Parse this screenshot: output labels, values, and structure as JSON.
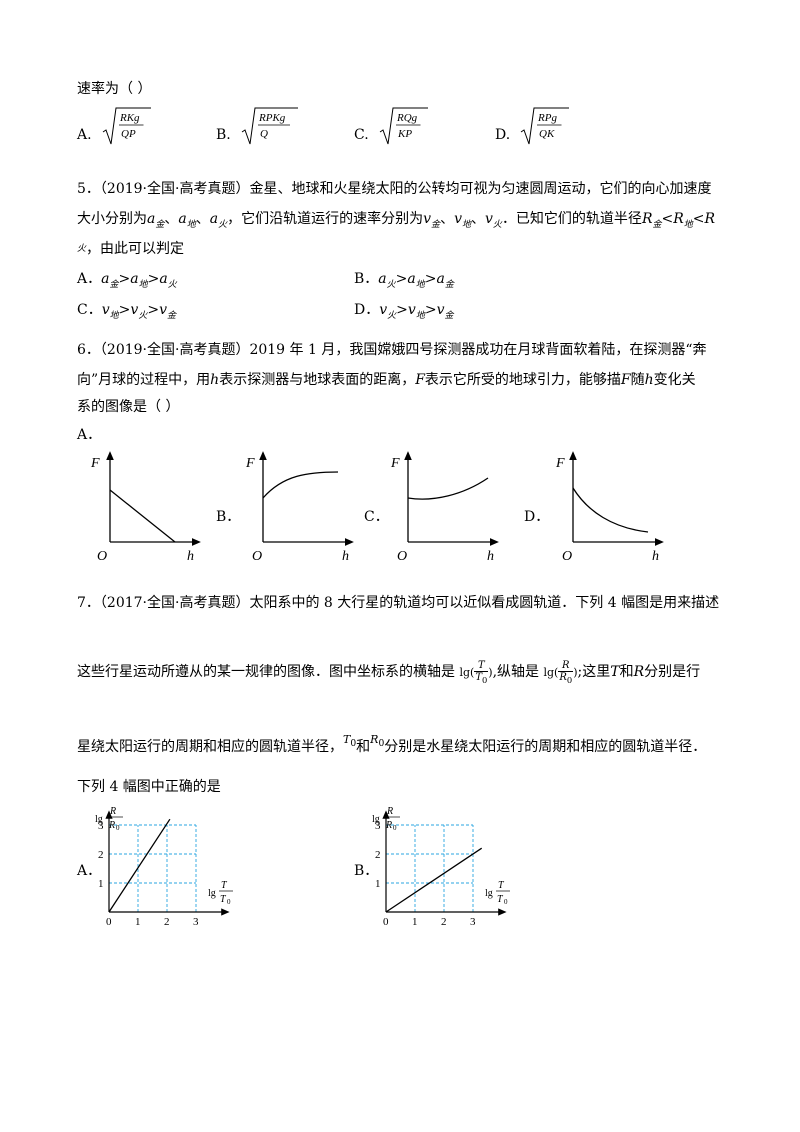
{
  "q4_tail": "速率为（      ）",
  "q4_options": [
    {
      "label": "A.",
      "num": "RKg",
      "den": "QP"
    },
    {
      "label": "B.",
      "num": "RPKg",
      "den": "Q"
    },
    {
      "label": "C.",
      "num": "RQg",
      "den": "KP"
    },
    {
      "label": "D.",
      "num": "RPg",
      "den": "QK"
    }
  ],
  "q5": {
    "number": "5．",
    "source": "（2019·全国·高考真题）",
    "stem1": "金星、地球和火星绕太阳的公转均可视为匀速圆周运动，它们的向心加速度",
    "stem2a": "大小分别为",
    "stem2b": "，它们沿轨道运行的速率分别为",
    "stem2c": "．已知它们的轨道半径",
    "stem3": "，由此可以判定",
    "sym_a": "a",
    "sym_v": "v",
    "sym_R": "R",
    "sub_jin": "金",
    "sub_di": "地",
    "sub_huo": "火",
    "sep": "、",
    "gt": ">",
    "lt": "<",
    "optA": "A．",
    "optB": "B．",
    "optC": "C．",
    "optD": "D．"
  },
  "q6": {
    "number": "6．",
    "source": "（2019·全国·高考真题）",
    "stem1": "2019 年 1 月，我国嫦娥四号探测器成功在月球背面软着陆，在探测器“奔",
    "stem2a": "向”月球的过程中，用",
    "stem2b": "表示探测器与地球表面的距离，",
    "stem2c": "表示它所受的地球引力，能够描",
    "stem2d": "随",
    "stem2e": "变化关",
    "stem3": "系的图像是（      ）",
    "sym_h": "h",
    "sym_F": "F",
    "optA": "A．",
    "optB": "B．",
    "optC": "C．",
    "optD": "D．",
    "graph_F": "F",
    "graph_O": "O",
    "graph_h": "h"
  },
  "q7": {
    "number": "7．",
    "source": "（2017·全国·高考真题）",
    "stem1": "太阳系中的 8 大行星的轨道均可以近似看成圆轨道．下列 4 幅图是用来描述",
    "stem2a": "这些行星运动所遵从的某一规律的图像．图中坐标系的横轴是",
    "stem2b": ",纵轴是",
    "stem2c": ";这里",
    "stem2d": "和",
    "stem2e": "分别是行",
    "stem3a": "星绕太阳运行的周期和相应的圆轨道半径，",
    "stem3b": "和",
    "stem3c": "分别是水星绕太阳运行的周期和相应的圆轨道半径．",
    "stem4": "下列 4 幅图中正确的是",
    "lg": "lg(",
    "rp": ")",
    "T": "T",
    "R": "R",
    "T0": "T",
    "R0": "R",
    "zero_sub": "0",
    "optA": "A．",
    "optB": "B．"
  },
  "chart_data": [
    {
      "type": "line",
      "label": "A．",
      "xlabel": "lg(T/T0)",
      "ylabel": "lg(R/R0)",
      "xticks": [
        "0",
        "1",
        "2",
        "3"
      ],
      "yticks": [
        "1",
        "2",
        "3"
      ],
      "xlim": [
        0,
        3
      ],
      "ylim": [
        0,
        3
      ],
      "grid": true,
      "series": [
        {
          "x": [
            0,
            2.1
          ],
          "y": [
            0,
            3.2
          ]
        }
      ]
    },
    {
      "type": "line",
      "label": "B．",
      "xlabel": "lg(T/T0)",
      "ylabel": "lg(R/R0)",
      "xticks": [
        "0",
        "1",
        "2",
        "3"
      ],
      "yticks": [
        "1",
        "2",
        "3"
      ],
      "xlim": [
        0,
        3
      ],
      "ylim": [
        0,
        3
      ],
      "grid": true,
      "series": [
        {
          "x": [
            0,
            3.3
          ],
          "y": [
            0,
            2.2
          ]
        }
      ]
    }
  ]
}
